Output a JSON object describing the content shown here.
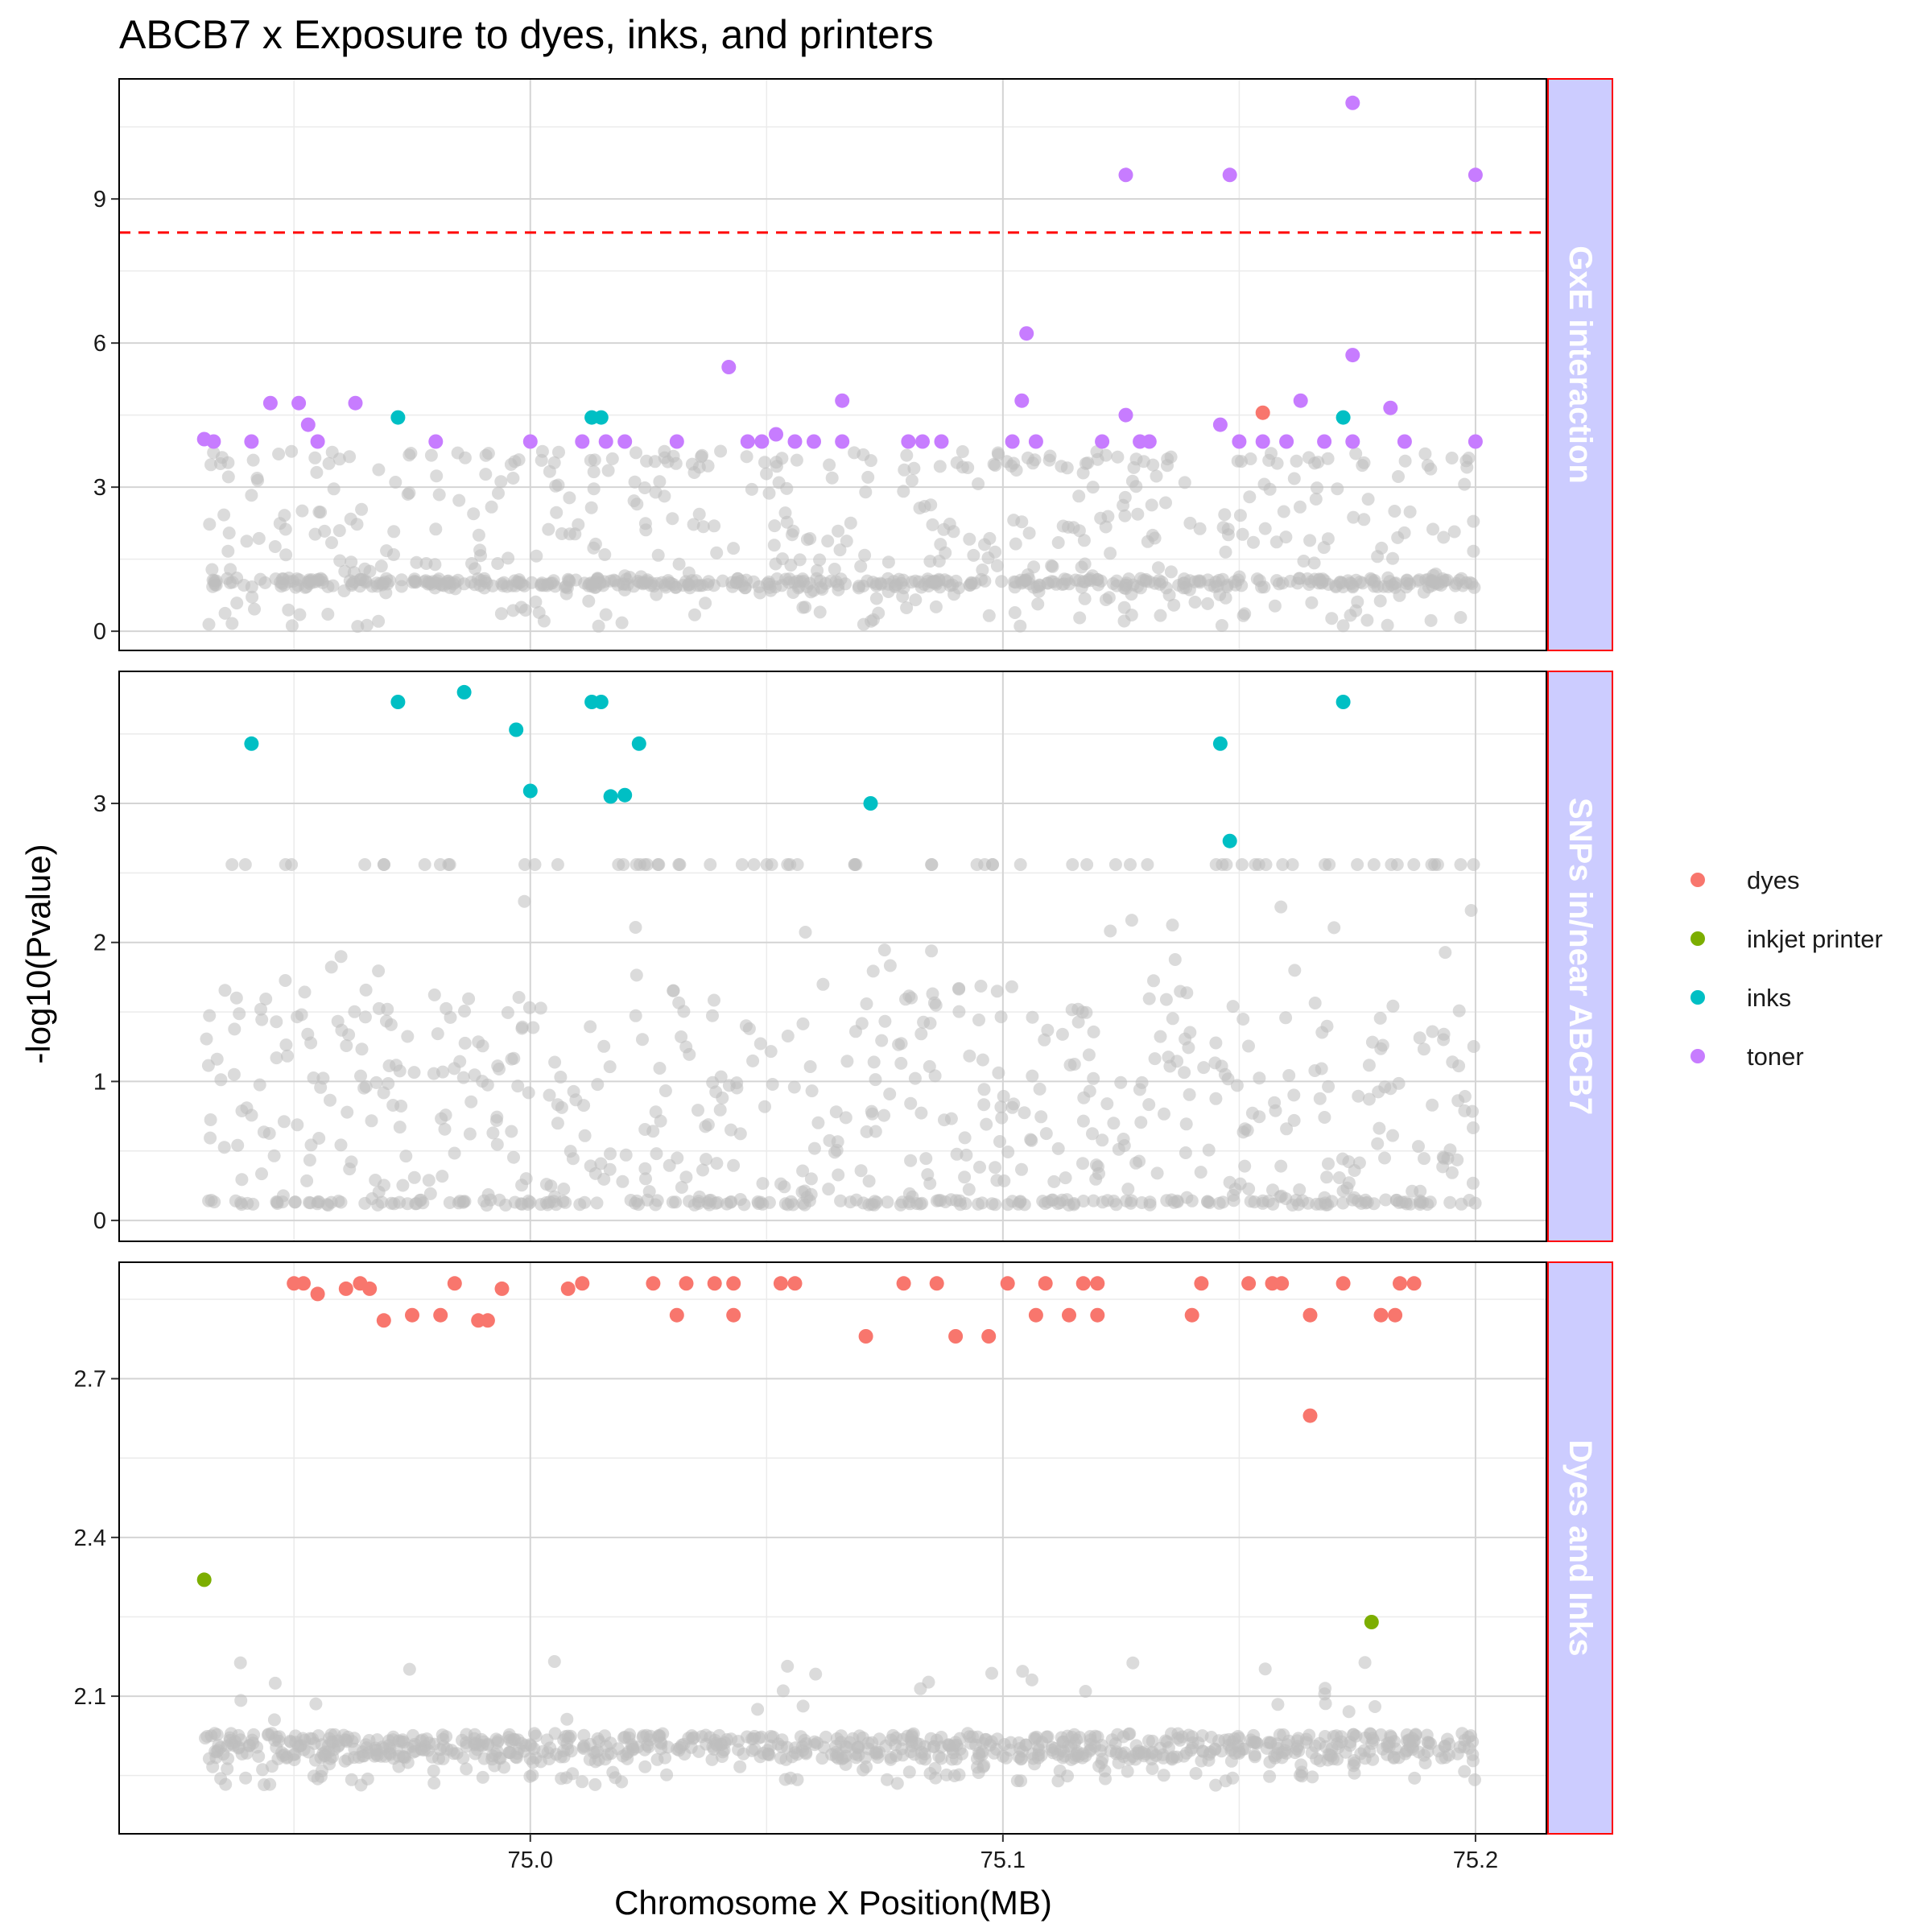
{
  "chart_data": {
    "type": "scatter",
    "title": "ABCB7 x Exposure to dyes, inks, and printers",
    "xlabel": "Chromosome X Position(MB)",
    "ylabel": "-log10(Pvalue)",
    "x_ticks": [
      "75.0",
      "75.1",
      "75.2"
    ],
    "xlim": [
      74.913,
      75.215
    ],
    "legend": {
      "position": "right",
      "entries": [
        {
          "name": "dyes",
          "color": "#F8766D"
        },
        {
          "name": "inkjet printer",
          "color": "#7CAE00"
        },
        {
          "name": "inks",
          "color": "#00BFC4"
        },
        {
          "name": "toner",
          "color": "#C77CFF"
        }
      ]
    },
    "background_color": "#BEBEBE",
    "threshold_color": "#FF0000",
    "strip_fill": "#CCCCFF",
    "strip_border": "#FF0000",
    "panels": [
      {
        "strip": "GxE interaction",
        "ylim": [
          -0.4,
          11.5
        ],
        "y_ticks": [
          "0",
          "3",
          "6",
          "9"
        ],
        "threshold": 8.3,
        "highlighted": {
          "dyes": [
            [
              75.155,
              4.55
            ]
          ],
          "inks": [
            [
              74.972,
              4.45
            ],
            [
              75.013,
              4.45
            ],
            [
              75.015,
              4.45
            ],
            [
              75.172,
              4.45
            ]
          ],
          "toner": [
            [
              74.931,
              4.0
            ],
            [
              74.933,
              3.95
            ],
            [
              74.941,
              3.95
            ],
            [
              74.945,
              4.75
            ],
            [
              74.951,
              4.75
            ],
            [
              74.953,
              4.3
            ],
            [
              74.955,
              3.95
            ],
            [
              74.963,
              4.75
            ],
            [
              74.98,
              3.95
            ],
            [
              75.0,
              3.95
            ],
            [
              75.011,
              3.95
            ],
            [
              75.016,
              3.95
            ],
            [
              75.02,
              3.95
            ],
            [
              75.031,
              3.95
            ],
            [
              75.042,
              5.5
            ],
            [
              75.046,
              3.95
            ],
            [
              75.049,
              3.95
            ],
            [
              75.052,
              4.1
            ],
            [
              75.056,
              3.95
            ],
            [
              75.06,
              3.95
            ],
            [
              75.066,
              3.95
            ],
            [
              75.066,
              4.8
            ],
            [
              75.08,
              3.95
            ],
            [
              75.083,
              3.95
            ],
            [
              75.087,
              3.95
            ],
            [
              75.102,
              3.95
            ],
            [
              75.104,
              4.8
            ],
            [
              75.105,
              6.2
            ],
            [
              75.107,
              3.95
            ],
            [
              75.121,
              3.95
            ],
            [
              75.126,
              9.5
            ],
            [
              75.126,
              4.5
            ],
            [
              75.129,
              3.95
            ],
            [
              75.131,
              3.95
            ],
            [
              75.146,
              4.3
            ],
            [
              75.148,
              9.5
            ],
            [
              75.15,
              3.95
            ],
            [
              75.155,
              3.95
            ],
            [
              75.16,
              3.95
            ],
            [
              75.163,
              4.8
            ],
            [
              75.168,
              3.95
            ],
            [
              75.174,
              11.0
            ],
            [
              75.174,
              5.75
            ],
            [
              75.174,
              3.95
            ],
            [
              75.182,
              4.65
            ],
            [
              75.185,
              3.95
            ],
            [
              75.2,
              9.5
            ],
            [
              75.2,
              3.95
            ]
          ]
        }
      },
      {
        "strip": "SNPs in/near ABCB7",
        "ylim": [
          -0.15,
          3.95
        ],
        "y_ticks": [
          "0",
          "1",
          "2",
          "3"
        ],
        "highlighted": {
          "inks": [
            [
              74.941,
              3.43
            ],
            [
              74.972,
              3.73
            ],
            [
              74.986,
              3.8
            ],
            [
              74.997,
              3.53
            ],
            [
              75.0,
              3.09
            ],
            [
              75.013,
              3.73
            ],
            [
              75.015,
              3.73
            ],
            [
              75.017,
              3.05
            ],
            [
              75.02,
              3.06
            ],
            [
              75.023,
              3.43
            ],
            [
              75.072,
              3.0
            ],
            [
              75.146,
              3.43
            ],
            [
              75.148,
              2.73
            ],
            [
              75.172,
              3.73
            ]
          ]
        }
      },
      {
        "strip": "Dyes and Inks",
        "ylim": [
          1.84,
          2.92
        ],
        "y_ticks": [
          "2.1",
          "2.4",
          "2.7"
        ],
        "highlighted": {
          "dyes": [
            [
              74.95,
              2.88
            ],
            [
              74.952,
              2.88
            ],
            [
              74.955,
              2.86
            ],
            [
              74.961,
              2.87
            ],
            [
              74.964,
              2.88
            ],
            [
              74.966,
              2.87
            ],
            [
              74.969,
              2.81
            ],
            [
              74.975,
              2.82
            ],
            [
              74.981,
              2.82
            ],
            [
              74.984,
              2.88
            ],
            [
              74.989,
              2.81
            ],
            [
              74.991,
              2.81
            ],
            [
              74.994,
              2.87
            ],
            [
              75.008,
              2.87
            ],
            [
              75.011,
              2.88
            ],
            [
              75.026,
              2.88
            ],
            [
              75.031,
              2.82
            ],
            [
              75.033,
              2.88
            ],
            [
              75.039,
              2.88
            ],
            [
              75.043,
              2.88
            ],
            [
              75.043,
              2.82
            ],
            [
              75.053,
              2.88
            ],
            [
              75.056,
              2.88
            ],
            [
              75.071,
              2.78
            ],
            [
              75.079,
              2.88
            ],
            [
              75.086,
              2.88
            ],
            [
              75.09,
              2.78
            ],
            [
              75.097,
              2.78
            ],
            [
              75.101,
              2.88
            ],
            [
              75.107,
              2.82
            ],
            [
              75.109,
              2.88
            ],
            [
              75.114,
              2.82
            ],
            [
              75.117,
              2.88
            ],
            [
              75.12,
              2.88
            ],
            [
              75.12,
              2.82
            ],
            [
              75.14,
              2.82
            ],
            [
              75.142,
              2.88
            ],
            [
              75.152,
              2.88
            ],
            [
              75.157,
              2.88
            ],
            [
              75.159,
              2.88
            ],
            [
              75.165,
              2.82
            ],
            [
              75.165,
              2.63
            ],
            [
              75.172,
              2.88
            ],
            [
              75.18,
              2.82
            ],
            [
              75.183,
              2.82
            ],
            [
              75.184,
              2.88
            ],
            [
              75.187,
              2.88
            ]
          ],
          "inkjet printer": [
            [
              74.931,
              2.32
            ],
            [
              75.178,
              2.24
            ]
          ]
        }
      }
    ]
  }
}
